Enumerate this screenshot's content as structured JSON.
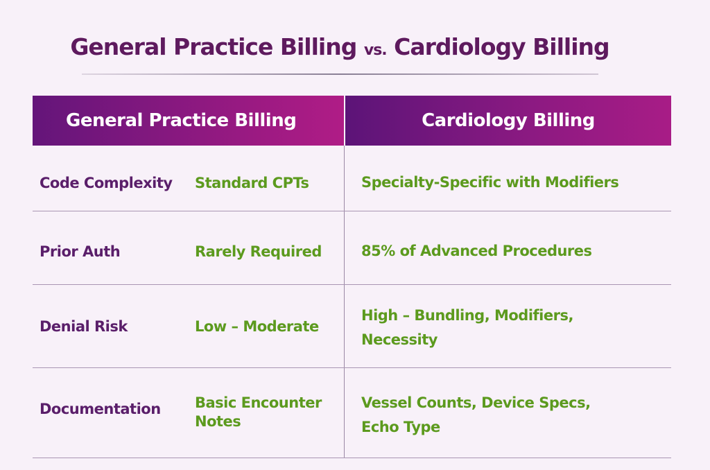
{
  "title": {
    "left": "General Practice Billing",
    "vs": "vs.",
    "right": "Cardiology Billing"
  },
  "headers": [
    "General Practice Billing",
    "Cardiology Billing"
  ],
  "rows": [
    {
      "label": "Code Complexity",
      "general": "Standard CPTs",
      "cardiology": "Specialty-Specific with Modifiers"
    },
    {
      "label": "Prior Auth",
      "general": "Rarely Required",
      "cardiology": "85% of Advanced Procedures"
    },
    {
      "label": "Denial Risk",
      "general": "Low – Moderate",
      "cardiology": "High – Bundling, Modifiers, Necessity"
    },
    {
      "label": "Documentation",
      "general": "Basic Encounter Notes",
      "cardiology": "Vessel Counts, Device Specs, Echo Type"
    }
  ],
  "colors": {
    "label": "#5a1e6a",
    "value": "#5c9a1e",
    "header": "#8e1a82",
    "background": "#f8f1f9"
  }
}
